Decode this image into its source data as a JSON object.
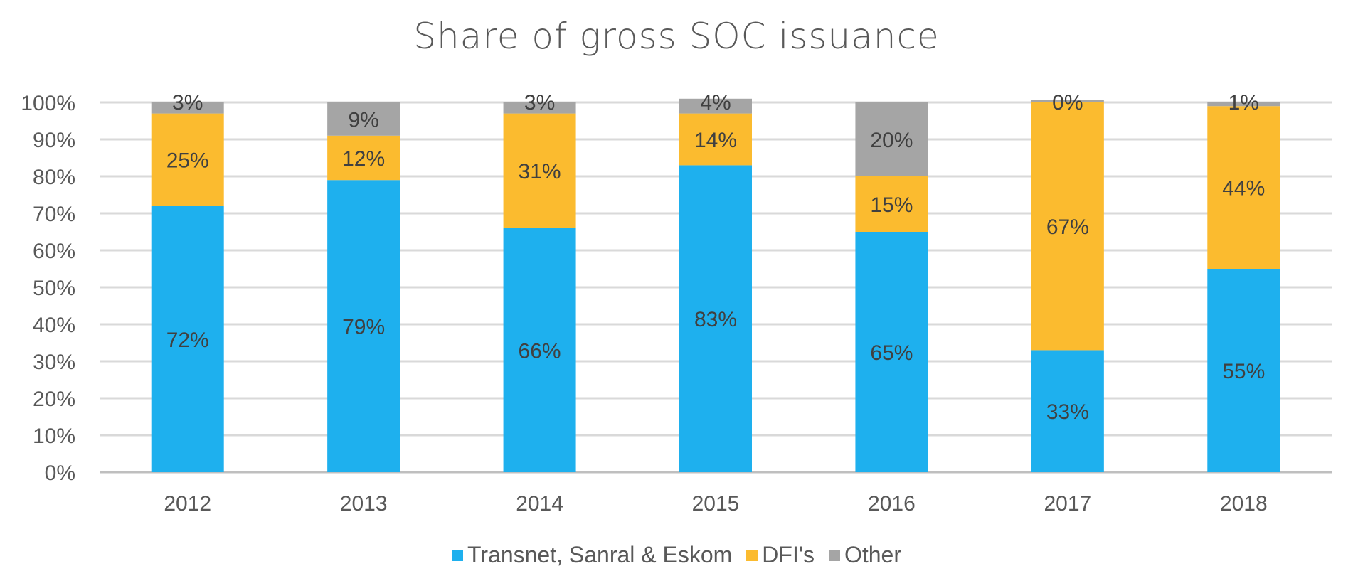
{
  "chart_data": {
    "type": "bar",
    "stacked": true,
    "title": "Share of gross SOC issuance",
    "categories": [
      "2012",
      "2013",
      "2014",
      "2015",
      "2016",
      "2017",
      "2018"
    ],
    "series": [
      {
        "name": "Transnet, Sanral & Eskom",
        "color": "#1EB0EE",
        "values": [
          72,
          79,
          66,
          83,
          65,
          33,
          55
        ],
        "labels": [
          "72%",
          "79%",
          "66%",
          "83%",
          "65%",
          "33%",
          "55%"
        ]
      },
      {
        "name": "DFI's",
        "color": "#FBBB2F",
        "values": [
          25,
          12,
          31,
          14,
          15,
          67,
          44
        ],
        "labels": [
          "25%",
          "12%",
          "31%",
          "14%",
          "15%",
          "67%",
          "44%"
        ]
      },
      {
        "name": "Other",
        "color": "#A5A5A5",
        "values": [
          3,
          9,
          3,
          4,
          20,
          0,
          1
        ],
        "labels": [
          "3%",
          "9%",
          "3%",
          "4%",
          "20%",
          "0%",
          "1%"
        ]
      }
    ],
    "yticks": [
      "0%",
      "10%",
      "20%",
      "30%",
      "40%",
      "50%",
      "60%",
      "70%",
      "80%",
      "90%",
      "100%"
    ],
    "ylim": [
      0,
      100
    ],
    "grid": true,
    "legend_position": "bottom"
  }
}
